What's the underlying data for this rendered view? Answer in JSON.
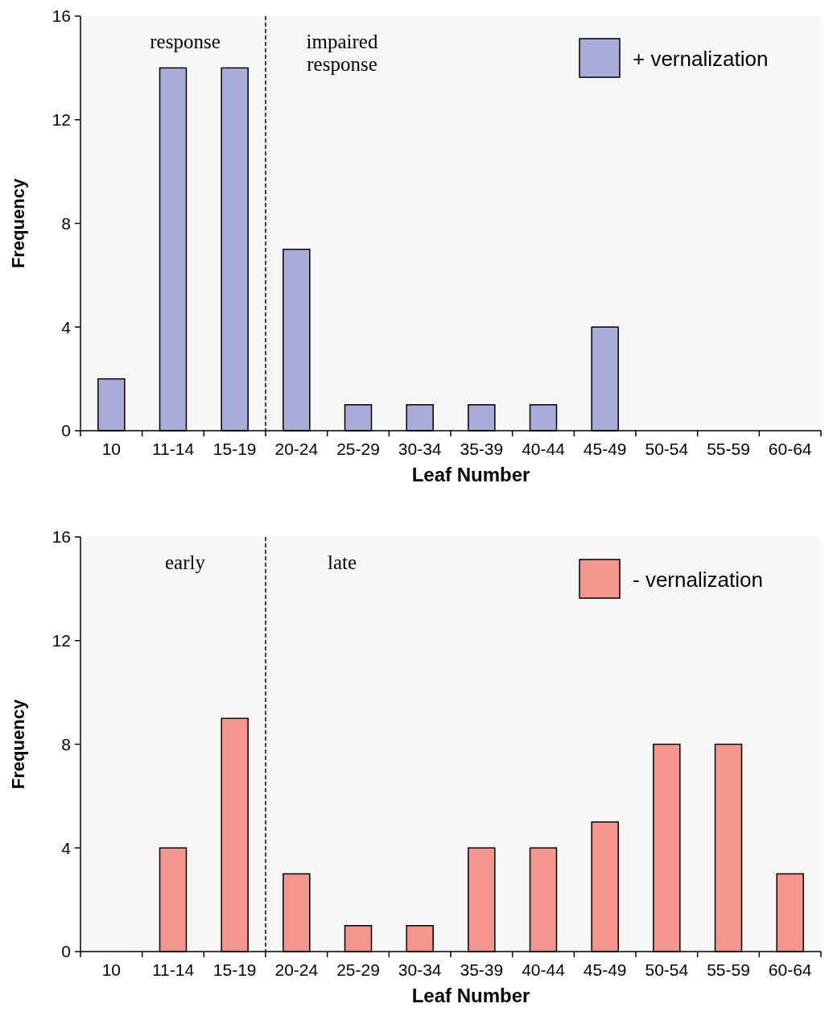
{
  "chart_data": [
    {
      "type": "bar",
      "xlabel": "Leaf Number",
      "ylabel": "Frequency",
      "categories": [
        "10",
        "11-14",
        "15-19",
        "20-24",
        "25-29",
        "30-34",
        "35-39",
        "40-44",
        "45-49",
        "50-54",
        "55-59",
        "60-64"
      ],
      "series": [
        {
          "name": "+ vernalization",
          "color": "#a9acd9",
          "values": [
            2,
            14,
            14,
            7,
            1,
            1,
            1,
            1,
            4,
            0,
            0,
            0
          ]
        }
      ],
      "ylim": [
        0,
        16
      ],
      "yticks": [
        0,
        4,
        8,
        12,
        16
      ],
      "grid": false,
      "legend": "top right",
      "annotations": [
        "response",
        "impaired response"
      ]
    },
    {
      "type": "bar",
      "xlabel": "Leaf Number",
      "ylabel": "Frequency",
      "categories": [
        "10",
        "11-14",
        "15-19",
        "20-24",
        "25-29",
        "30-34",
        "35-39",
        "40-44",
        "45-49",
        "50-54",
        "55-59",
        "60-64"
      ],
      "series": [
        {
          "name": "- vernalization",
          "color": "#f4968f",
          "values": [
            0,
            4,
            9,
            3,
            1,
            1,
            4,
            4,
            5,
            8,
            8,
            3
          ]
        }
      ],
      "ylim": [
        0,
        16
      ],
      "yticks": [
        0,
        4,
        8,
        12,
        16
      ],
      "grid": false,
      "legend": "top right",
      "annotations": [
        "early",
        "late"
      ]
    }
  ]
}
